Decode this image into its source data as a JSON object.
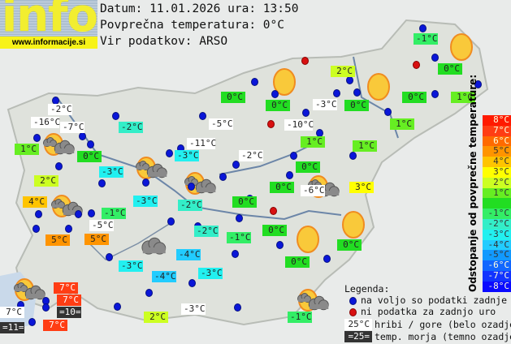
{
  "logo": {
    "text": "info",
    "url": "www.informacije.si"
  },
  "header": {
    "date_line": "Datum: 11.01.2026 ura: 13:50",
    "avg_line": "Povprečna temperatura: 0°C",
    "source_line": "Vir podatkov: ARSO"
  },
  "colors": {
    "8": "#ff1a00",
    "7": "#ff3d14",
    "6": "#ff6a00",
    "5": "#ff9400",
    "4": "#ffc400",
    "3": "#ffff00",
    "2": "#ccff22",
    "1": "#66ee22",
    "0": "#22dd22",
    "-1": "#33ee66",
    "-2": "#33eec8",
    "-3": "#22f0f0",
    "-4": "#22ccff",
    "-5": "#1199ff",
    "-6": "#1166ff",
    "-7": "#1133ff",
    "-8": "#0a0aff",
    "white": "#ffffff",
    "sea": "#333333",
    "station": "#0a16d8",
    "nodata": "#d81010"
  },
  "map_labels": [
    {
      "text": "-1°C",
      "kind": "-1"
    },
    {
      "text": "0°C",
      "kind": "0"
    },
    {
      "text": "2°C",
      "kind": "2"
    },
    {
      "text": "0°C",
      "kind": "0"
    },
    {
      "text": "0°C",
      "kind": "0"
    },
    {
      "text": "-3°C",
      "kind": "white"
    },
    {
      "text": "0°C",
      "kind": "0"
    },
    {
      "text": "0°C",
      "kind": "0"
    },
    {
      "text": "1°C",
      "kind": "1"
    },
    {
      "text": "-2°C",
      "kind": "white"
    },
    {
      "text": "-16°C",
      "kind": "white"
    },
    {
      "text": "-7°C",
      "kind": "white"
    },
    {
      "text": "-2°C",
      "kind": "-2"
    },
    {
      "text": "-5°C",
      "kind": "white"
    },
    {
      "text": "-10°C",
      "kind": "white"
    },
    {
      "text": "1°C",
      "kind": "1"
    },
    {
      "text": "1°C",
      "kind": "1"
    },
    {
      "text": "0°C",
      "kind": "0"
    },
    {
      "text": "-11°C",
      "kind": "white"
    },
    {
      "text": "-3°C",
      "kind": "-3"
    },
    {
      "text": "1°C",
      "kind": "1"
    },
    {
      "text": "1°C",
      "kind": "1"
    },
    {
      "text": "-2°C",
      "kind": "white"
    },
    {
      "text": "-3°C",
      "kind": "-3"
    },
    {
      "text": "0°C",
      "kind": "0"
    },
    {
      "text": "2°C",
      "kind": "2"
    },
    {
      "text": "0°C",
      "kind": "0"
    },
    {
      "text": "-6°C",
      "kind": "white"
    },
    {
      "text": "3°C",
      "kind": "3"
    },
    {
      "text": "4°C",
      "kind": "4"
    },
    {
      "text": "-3°C",
      "kind": "-3"
    },
    {
      "text": "-2°C",
      "kind": "-2"
    },
    {
      "text": "0°C",
      "kind": "0"
    },
    {
      "text": "-1°C",
      "kind": "-1"
    },
    {
      "text": "-5°C",
      "kind": "white"
    },
    {
      "text": "0°C",
      "kind": "0"
    },
    {
      "text": "-2°C",
      "kind": "-2"
    },
    {
      "text": "-1°C",
      "kind": "-1"
    },
    {
      "text": "5°C",
      "kind": "5"
    },
    {
      "text": "5°C",
      "kind": "5"
    },
    {
      "text": "0°C",
      "kind": "0"
    },
    {
      "text": "-4°C",
      "kind": "-4"
    },
    {
      "text": "0°C",
      "kind": "0"
    },
    {
      "text": "-3°C",
      "kind": "-3"
    },
    {
      "text": "-4°C",
      "kind": "-4"
    },
    {
      "text": "-3°C",
      "kind": "-3"
    },
    {
      "text": "7°C",
      "kind": "7"
    },
    {
      "text": "7°C",
      "kind": "7"
    },
    {
      "text": "=10=",
      "kind": "sea"
    },
    {
      "text": "7°C",
      "kind": "white"
    },
    {
      "text": "7°C",
      "kind": "7"
    },
    {
      "text": "=11=",
      "kind": "sea"
    },
    {
      "text": "-3°C",
      "kind": "white"
    },
    {
      "text": "2°C",
      "kind": "2"
    },
    {
      "text": "-1°C",
      "kind": "-1"
    }
  ],
  "weather_icons": [
    "sun",
    "sun",
    "sun",
    "sun",
    "sun",
    "partly-cloudy",
    "partly-cloudy",
    "partly-cloudy",
    "partly-cloudy",
    "partly-cloudy",
    "partly-cloudy",
    "partly-cloudy",
    "cloud"
  ],
  "scale": {
    "title": "Odstopanje od povprečne temperature:",
    "items": [
      "8°C",
      "7°C",
      "6°C",
      "5°C",
      "4°C",
      "3°C",
      "2°C",
      "1°C",
      "",
      "-1°C",
      "-2°C",
      "-3°C",
      "-4°C",
      "-5°C",
      "-6°C",
      "-7°C",
      "-8°C"
    ],
    "keys": [
      "8",
      "7",
      "6",
      "5",
      "4",
      "3",
      "2",
      "1",
      "0",
      "-1",
      "-2",
      "-3",
      "-4",
      "-5",
      "-6",
      "-7",
      "-8"
    ]
  },
  "legend": {
    "title": "Legenda:",
    "station": "na voljo so podatki zadnje ure",
    "nodata": "ni podatka za zadnjo uro",
    "mountain_sample": "25°C",
    "mountain": "hribi / gore (belo ozadje)",
    "sea_sample": "=25=",
    "sea": "temp. morja (temno ozadje)"
  }
}
